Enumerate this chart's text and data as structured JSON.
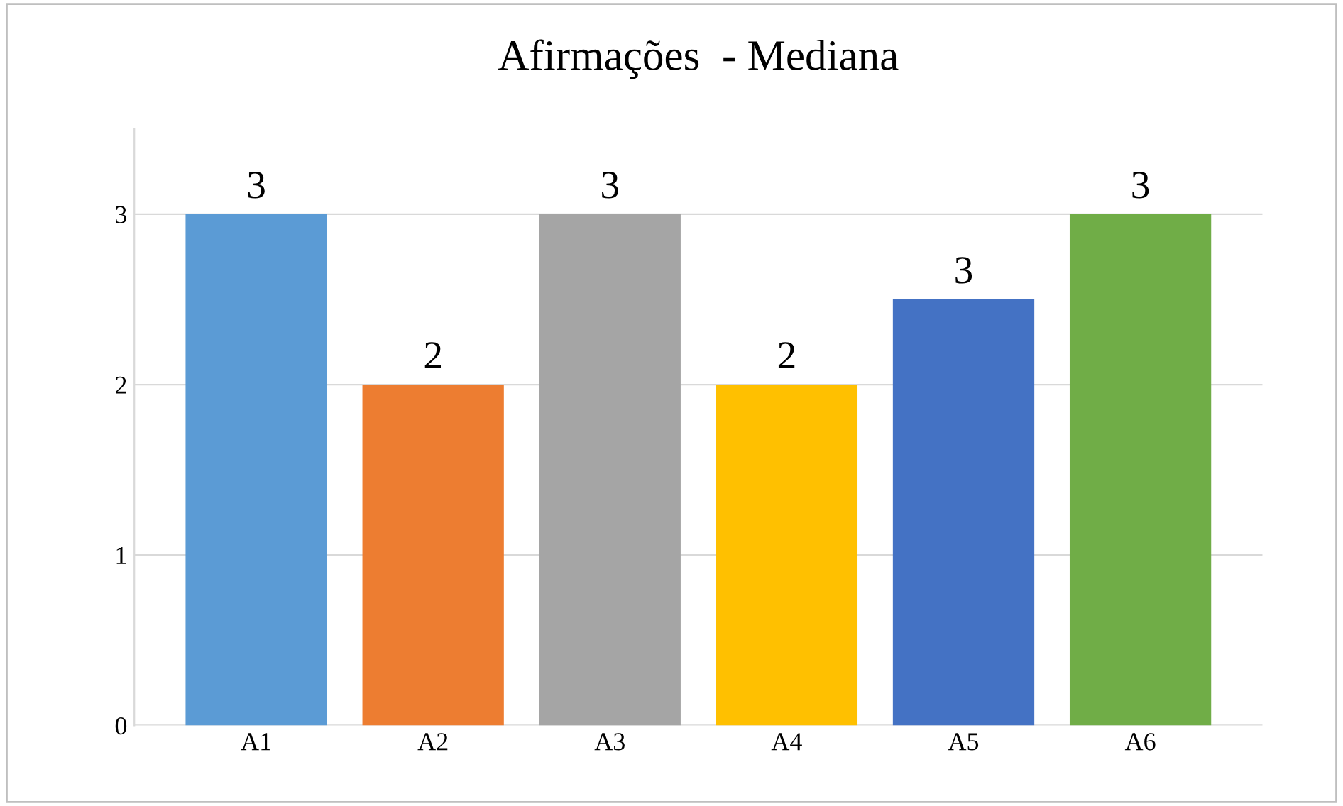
{
  "chart_data": {
    "type": "bar",
    "title": "Afirmações  - Mediana",
    "categories": [
      "A1",
      "A2",
      "A3",
      "A4",
      "A5",
      "A6"
    ],
    "values": [
      3,
      2,
      3,
      2,
      2.5,
      3
    ],
    "colors": [
      "#5b9bd5",
      "#ed7d31",
      "#a5a5a5",
      "#ffc000",
      "#4472c4",
      "#70ad47"
    ],
    "value_labels": [
      "3",
      "2",
      "3",
      "2",
      "3",
      "3"
    ],
    "ylim": [
      0,
      3.5
    ],
    "yticks": [
      0,
      1,
      2,
      3
    ],
    "grid": "y",
    "legend": false
  }
}
